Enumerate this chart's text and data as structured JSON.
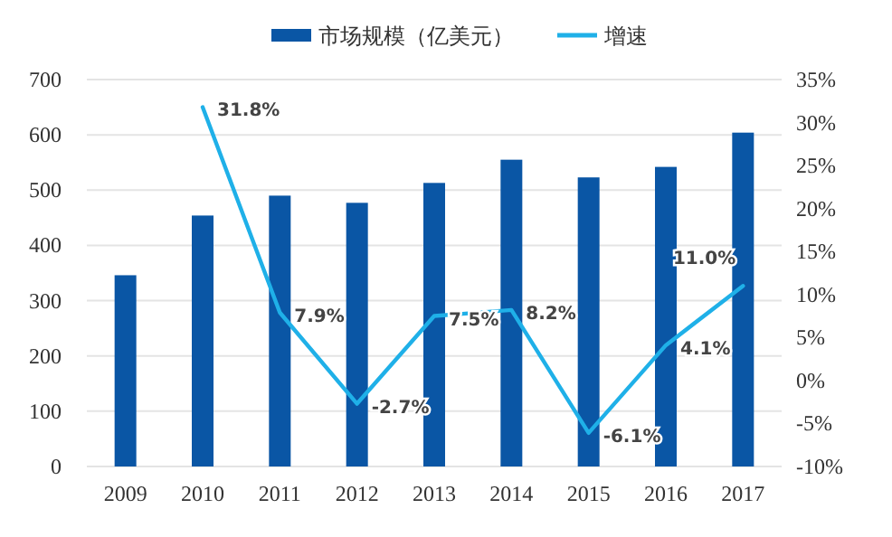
{
  "chart_data": {
    "type": "bar",
    "categories": [
      "2009",
      "2010",
      "2011",
      "2012",
      "2013",
      "2014",
      "2015",
      "2016",
      "2017"
    ],
    "series": [
      {
        "name": "市场规模（亿美元）",
        "color": "#0a56a5",
        "values": [
          346,
          454,
          490,
          477,
          513,
          555,
          523,
          542,
          604
        ]
      },
      {
        "name": "增速",
        "type": "line",
        "axis": "y2",
        "color": "#1fb0e8",
        "values": [
          null,
          31.8,
          7.9,
          -2.7,
          7.5,
          8.2,
          -6.1,
          4.1,
          11.0
        ],
        "value_labels": [
          null,
          "31.8%",
          "7.9%",
          "-2.7%",
          "7.5%",
          "8.2%",
          "-6.1%",
          "4.1%",
          "11.0%"
        ]
      }
    ],
    "ylim": [
      0,
      700
    ],
    "yticks": [
      0,
      100,
      200,
      300,
      400,
      500,
      600,
      700
    ],
    "y2lim": [
      -10,
      35
    ],
    "y2ticks": [
      {
        "value": -10,
        "label": "-10%"
      },
      {
        "value": -5,
        "label": "-5%"
      },
      {
        "value": 0,
        "label": "0%"
      },
      {
        "value": 5,
        "label": "5%"
      },
      {
        "value": 10,
        "label": "10%"
      },
      {
        "value": 15,
        "label": "15%"
      },
      {
        "value": 20,
        "label": "20%"
      },
      {
        "value": 25,
        "label": "25%"
      },
      {
        "value": 30,
        "label": "30%"
      },
      {
        "value": 35,
        "label": "35%"
      }
    ],
    "grid": "y",
    "legend": "top",
    "marker": "none",
    "line_style": "solid"
  }
}
